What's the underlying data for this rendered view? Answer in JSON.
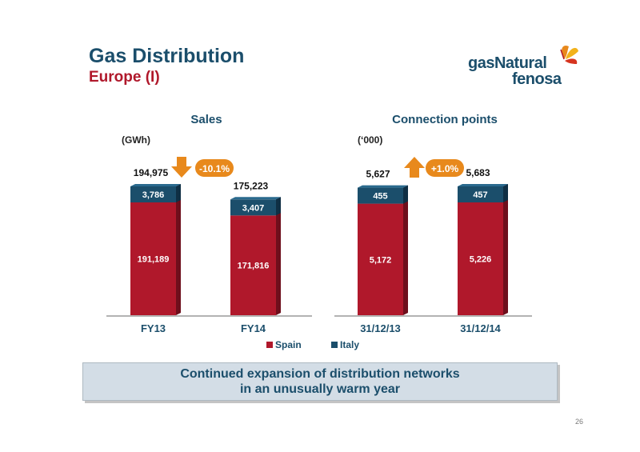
{
  "header": {
    "title": "Gas Distribution",
    "subtitle": "Europe (I)"
  },
  "logo": {
    "line1": "gasNatural",
    "line2": "fenosa"
  },
  "banner": {
    "line1": "Continued expansion of distribution networks",
    "line2": "in an unusually warm year"
  },
  "page_number": "26",
  "colors": {
    "spain": "#b0182b",
    "italy": "#1b4e6b",
    "arrow": "#e8891c",
    "title": "#1b4e6b"
  },
  "chart_data": [
    {
      "type": "bar",
      "title": "Sales",
      "unit": "(GWh)",
      "stacked": true,
      "categories": [
        "FY13",
        "FY14"
      ],
      "series": [
        {
          "name": "Spain",
          "values": [
            191189,
            171816
          ],
          "labels": [
            "191,189",
            "171,816"
          ]
        },
        {
          "name": "Italy",
          "values": [
            3786,
            3407
          ],
          "labels": [
            "3,786",
            "3,407"
          ]
        }
      ],
      "totals": [
        194975,
        175223
      ],
      "total_labels": [
        "194,975",
        "175,223"
      ],
      "change": {
        "label": "-10.1%",
        "direction": "down"
      },
      "ylim": [
        0,
        194975
      ]
    },
    {
      "type": "bar",
      "title": "Connection points",
      "unit": "(‘000)",
      "stacked": true,
      "categories": [
        "31/12/13",
        "31/12/14"
      ],
      "series": [
        {
          "name": "Spain",
          "values": [
            5172,
            5226
          ],
          "labels": [
            "5,172",
            "5,226"
          ]
        },
        {
          "name": "Italy",
          "values": [
            455,
            457
          ],
          "labels": [
            "455",
            "457"
          ]
        }
      ],
      "totals": [
        5627,
        5683
      ],
      "total_labels": [
        "5,627",
        "5,683"
      ],
      "change": {
        "label": "+1.0%",
        "direction": "up"
      },
      "ylim": [
        0,
        5683
      ]
    }
  ],
  "legend": [
    {
      "name": "Spain"
    },
    {
      "name": "Italy"
    }
  ]
}
